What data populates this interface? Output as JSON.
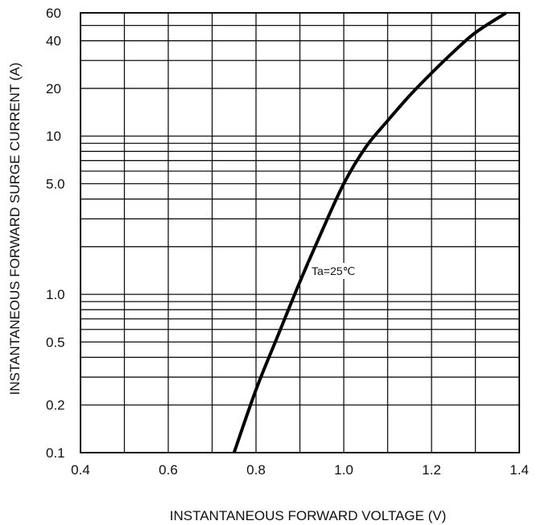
{
  "chart_data": {
    "type": "line",
    "title": "",
    "xlabel": "INSTANTANEOUS FORWARD VOLTAGE (V)",
    "ylabel": "INSTANTANEOUS FORWARD SURGE CURRENT (A)",
    "x_scale": "linear",
    "y_scale": "log",
    "xlim": [
      0.4,
      1.4
    ],
    "ylim": [
      0.1,
      60
    ],
    "x_ticks": [
      0.4,
      0.6,
      0.8,
      1.0,
      1.2,
      1.4
    ],
    "x_tick_labels": [
      "0.4",
      "0.6",
      "0.8",
      "1.0",
      "1.2",
      "1.4"
    ],
    "y_ticks": [
      0.1,
      0.2,
      0.5,
      1.0,
      5.0,
      10,
      20,
      40,
      60
    ],
    "y_tick_labels": [
      "0.1",
      "0.2",
      "0.5",
      "1.0",
      "5.0",
      "10",
      "20",
      "40",
      "60"
    ],
    "grid": true,
    "legend": "none",
    "annotation": "Ta=25℃",
    "series": [
      {
        "x": [
          0.75,
          0.8,
          0.85,
          0.9,
          0.95,
          1.0,
          1.05,
          1.1,
          1.15,
          1.2,
          1.25,
          1.3,
          1.37
        ],
        "y": [
          0.1,
          0.25,
          0.55,
          1.2,
          2.5,
          5.0,
          8.5,
          12.5,
          18,
          25,
          34,
          45,
          60
        ]
      }
    ]
  }
}
